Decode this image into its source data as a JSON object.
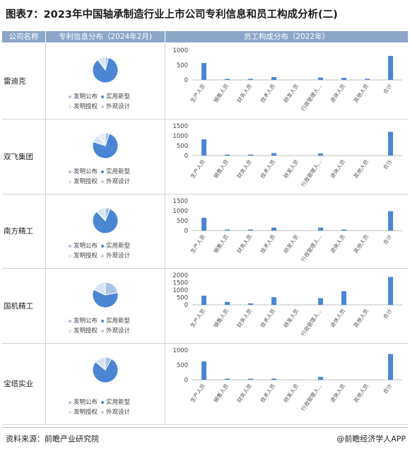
{
  "title": "图表7：2023年中国轴承制造行业上市公司专利信息和员工构成分析(二)",
  "headers": {
    "company": "公司名称",
    "patent": "专利信息分布（2024年2月)",
    "staff": "员工构成分布（2022年）"
  },
  "legend": {
    "invention_pub": "发明公布",
    "utility": "实用新型",
    "invention_grant": "发明授权",
    "design": "外观设计"
  },
  "colors": {
    "header_bg": "#8ca6c8",
    "bar": "#4a86d4",
    "pie_main": "#4a86d4",
    "pie_light": "#a9c3e6",
    "pie_pale": "#d8e4f3"
  },
  "footer": {
    "source": "资料来源：前瞻产业研究院",
    "brand": "@前瞻经济学人APP"
  },
  "chart_data": [
    {
      "company": "雷迪克",
      "pie": {
        "type": "pie",
        "labels": [
          "发明公布",
          "实用新型",
          "发明授权",
          "外观设计"
        ],
        "values": [
          4,
          86,
          10,
          0
        ]
      },
      "bar": {
        "type": "bar",
        "categories": [
          "生产人员",
          "销售人员",
          "财务人员",
          "技术人员",
          "研发人员",
          "行政管理人...",
          "退休人员",
          "其他人员",
          "合计"
        ],
        "values": [
          570,
          20,
          25,
          95,
          0,
          80,
          70,
          30,
          810
        ],
        "ylim": [
          0,
          1000
        ],
        "yticks": [
          "1000",
          "500",
          "0"
        ]
      }
    },
    {
      "company": "双飞集团",
      "pie": {
        "type": "pie",
        "labels": [
          "发明公布",
          "实用新型",
          "发明授权",
          "外观设计"
        ],
        "values": [
          5,
          75,
          10,
          10
        ]
      },
      "bar": {
        "type": "bar",
        "categories": [
          "生产人员",
          "销售人员",
          "财务人员",
          "技术人员",
          "研发人员",
          "行政管理人...",
          "退休人员",
          "其他人员",
          "合计"
        ],
        "values": [
          820,
          50,
          20,
          130,
          0,
          110,
          0,
          0,
          1200
        ],
        "ylim": [
          0,
          1500
        ],
        "yticks": [
          "1500",
          "1000",
          "500",
          "0"
        ]
      }
    },
    {
      "company": "南方精工",
      "pie": {
        "type": "pie",
        "labels": [
          "发明公布",
          "实用新型",
          "发明授权",
          "外观设计"
        ],
        "values": [
          6,
          82,
          12,
          0
        ]
      },
      "bar": {
        "type": "bar",
        "categories": [
          "生产人员",
          "销售人员",
          "财务人员",
          "技术人员",
          "研发人员",
          "行政管理人...",
          "退休人员",
          "其他人员",
          "合计"
        ],
        "values": [
          650,
          30,
          20,
          150,
          0,
          150,
          20,
          0,
          980
        ],
        "ylim": [
          0,
          1500
        ],
        "yticks": [
          "1500",
          "1000",
          "500",
          "0"
        ]
      }
    },
    {
      "company": "国机精工",
      "pie": {
        "type": "pie",
        "labels": [
          "发明公布",
          "实用新型",
          "发明授权",
          "外观设计"
        ],
        "values": [
          22,
          60,
          18,
          0
        ]
      },
      "bar": {
        "type": "bar",
        "categories": [
          "生产人员",
          "销售人员",
          "财务人员",
          "技术人员",
          "研发人员",
          "行政管理人...",
          "退休人员",
          "其他人员",
          "合计"
        ],
        "values": [
          620,
          200,
          100,
          520,
          0,
          450,
          920,
          0,
          1880
        ],
        "ylim": [
          0,
          2000
        ],
        "yticks": [
          "2000",
          "1500",
          "1000",
          "500",
          "0"
        ]
      }
    },
    {
      "company": "宝塔实业",
      "pie": {
        "type": "pie",
        "labels": [
          "发明公布",
          "实用新型",
          "发明授权",
          "外观设计"
        ],
        "values": [
          8,
          78,
          14,
          0
        ]
      },
      "bar": {
        "type": "bar",
        "categories": [
          "生产人员",
          "销售人员",
          "财务人员",
          "技术人员",
          "研发人员",
          "行政管理人...",
          "退休人员",
          "其他人员",
          "合计"
        ],
        "values": [
          620,
          30,
          25,
          40,
          0,
          100,
          0,
          0,
          870
        ],
        "ylim": [
          0,
          1000
        ],
        "yticks": [
          "1000",
          "500",
          "0"
        ]
      }
    }
  ]
}
